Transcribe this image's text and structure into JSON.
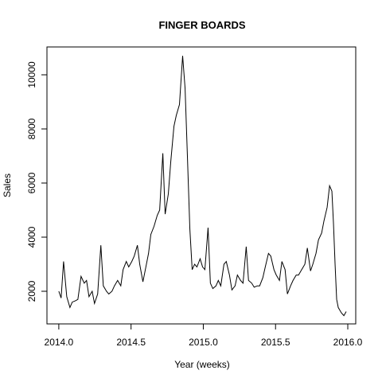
{
  "chart_data": {
    "type": "line",
    "title": "FINGER BOARDS",
    "xlabel": "Year (weeks)",
    "ylabel": "Sales",
    "x": [
      2014.0,
      2014.016,
      2014.033,
      2014.055,
      2014.077,
      2014.093,
      2014.115,
      2014.132,
      2014.154,
      2014.176,
      2014.192,
      2014.209,
      2014.231,
      2014.247,
      2014.269,
      2014.291,
      2014.308,
      2014.33,
      2014.346,
      2014.368,
      2014.385,
      2014.407,
      2014.429,
      2014.445,
      2014.467,
      2014.484,
      2014.505,
      2014.522,
      2014.544,
      2014.56,
      2014.582,
      2014.599,
      2014.621,
      2014.637,
      2014.659,
      2014.681,
      2014.698,
      2014.72,
      2014.736,
      2014.758,
      2014.775,
      2014.797,
      2014.813,
      2014.835,
      2014.857,
      2014.874,
      2014.89,
      2014.907,
      2014.923,
      2014.94,
      2014.956,
      2014.978,
      2014.995,
      2015.011,
      2015.033,
      2015.049,
      2015.066,
      2015.088,
      2015.104,
      2015.121,
      2015.143,
      2015.159,
      2015.181,
      2015.198,
      2015.22,
      2015.236,
      2015.258,
      2015.275,
      2015.297,
      2015.313,
      2015.335,
      2015.352,
      2015.374,
      2015.39,
      2015.412,
      2015.429,
      2015.451,
      2015.467,
      2015.489,
      2015.505,
      2015.527,
      2015.544,
      2015.566,
      2015.582,
      2015.604,
      2015.621,
      2015.643,
      2015.659,
      2015.681,
      2015.703,
      2015.72,
      2015.742,
      2015.758,
      2015.78,
      2015.797,
      2015.819,
      2015.835,
      2015.857,
      2015.874,
      2015.89,
      2015.901,
      2015.912,
      2015.923,
      2015.934,
      2015.956,
      2015.973,
      2015.989
    ],
    "series": [
      {
        "name": "Sales",
        "color": "#000000",
        "values": [
          2000,
          1750,
          3100,
          1800,
          1400,
          1600,
          1650,
          1700,
          2550,
          2300,
          2400,
          1800,
          2000,
          1550,
          1900,
          3700,
          2200,
          2000,
          1900,
          2000,
          2200,
          2400,
          2200,
          2800,
          3100,
          2900,
          3100,
          3300,
          3700,
          3000,
          2350,
          2800,
          3400,
          4100,
          4400,
          4800,
          5000,
          7100,
          4850,
          5600,
          6800,
          8100,
          8500,
          8900,
          10700,
          9500,
          7000,
          4300,
          2800,
          3000,
          2900,
          3200,
          2900,
          2800,
          4350,
          2300,
          2100,
          2200,
          2400,
          2200,
          3000,
          3100,
          2600,
          2050,
          2200,
          2600,
          2400,
          2300,
          3650,
          2400,
          2300,
          2150,
          2200,
          2200,
          2500,
          2900,
          3400,
          3300,
          2800,
          2600,
          2400,
          3100,
          2800,
          1900,
          2200,
          2400,
          2600,
          2600,
          2800,
          3000,
          3600,
          2750,
          3000,
          3400,
          3900,
          4150,
          4600,
          5100,
          5900,
          5700,
          4500,
          3000,
          1700,
          1400,
          1200,
          1100,
          1250
        ]
      }
    ],
    "xlim": [
      2013.918,
      2016.055
    ],
    "ylim": [
      794,
      11029
    ],
    "xticks": [
      {
        "value": 2014,
        "label": "2014.0"
      },
      {
        "value": 2014.5,
        "label": "2014.5"
      },
      {
        "value": 2015,
        "label": "2015.0"
      },
      {
        "value": 2015.5,
        "label": "2015.5"
      },
      {
        "value": 2016,
        "label": "2016.0"
      }
    ],
    "yticks": [
      2000,
      4000,
      6000,
      8000,
      10000
    ]
  }
}
